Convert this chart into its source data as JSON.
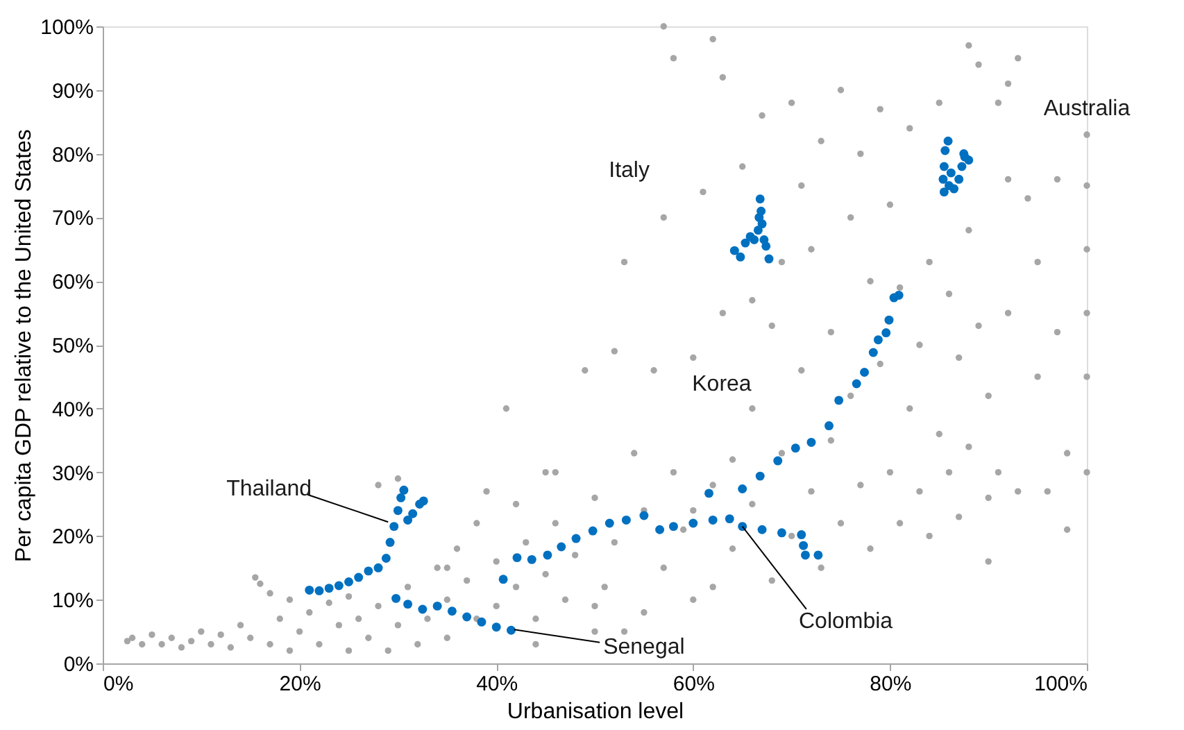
{
  "chart_data": {
    "type": "scatter",
    "xlabel": "Urbanisation level",
    "ylabel": "Per capita GDP relative to the United States",
    "xlim": [
      0,
      100
    ],
    "ylim": [
      0,
      100
    ],
    "xticks": [
      {
        "value": 0,
        "label": "0%"
      },
      {
        "value": 20,
        "label": "20%"
      },
      {
        "value": 40,
        "label": "40%"
      },
      {
        "value": 60,
        "label": "60%"
      },
      {
        "value": 80,
        "label": "80%"
      },
      {
        "value": 100,
        "label": "100%"
      }
    ],
    "yticks": [
      {
        "value": 0,
        "label": "0%"
      },
      {
        "value": 10,
        "label": "10%"
      },
      {
        "value": 20,
        "label": "20%"
      },
      {
        "value": 30,
        "label": "30%"
      },
      {
        "value": 40,
        "label": "40%"
      },
      {
        "value": 50,
        "label": "50%"
      },
      {
        "value": 60,
        "label": "60%"
      },
      {
        "value": 70,
        "label": "70%"
      },
      {
        "value": 80,
        "label": "80%"
      },
      {
        "value": 90,
        "label": "90%"
      },
      {
        "value": 100,
        "label": "100%"
      }
    ],
    "grid": false,
    "marker": "circle",
    "series": [
      {
        "color": "#a6a6a6",
        "x": [
          2.5,
          3,
          4,
          5,
          6,
          7,
          8,
          9,
          10,
          11,
          12,
          13,
          14,
          15,
          15.5,
          16,
          17,
          17,
          18,
          19,
          19,
          20,
          21,
          22,
          23,
          24,
          25,
          25,
          26,
          27,
          28,
          29,
          30,
          31,
          32,
          33,
          34,
          35,
          35,
          36,
          37,
          38,
          38,
          39,
          40,
          40,
          41,
          42,
          42,
          43,
          44,
          45,
          45,
          46,
          47,
          48,
          49,
          50,
          50,
          51,
          52,
          52,
          53,
          54,
          55,
          55,
          56,
          57,
          57,
          58,
          58,
          59,
          60,
          60,
          61,
          62,
          62,
          63,
          63,
          64,
          64,
          65,
          66,
          66,
          67,
          68,
          68,
          69,
          69,
          70,
          70,
          71,
          71,
          72,
          72,
          73,
          73,
          74,
          74,
          75,
          75,
          76,
          76,
          77,
          77,
          78,
          78,
          79,
          79,
          80,
          80,
          81,
          81,
          82,
          82,
          83,
          83,
          84,
          84,
          85,
          85,
          86,
          86,
          87,
          87,
          88,
          88,
          89,
          89,
          90,
          90,
          90,
          91,
          91,
          92,
          92,
          93,
          93,
          94,
          95,
          95,
          96,
          97,
          97,
          98,
          98,
          100,
          100,
          100,
          100,
          100,
          100,
          57,
          62,
          88,
          92,
          66,
          46,
          30,
          28,
          60,
          53,
          44,
          50,
          35
        ],
        "values": [
          3.5,
          4,
          3,
          4.5,
          3,
          4,
          2.5,
          3.5,
          5,
          3,
          4.5,
          2.5,
          6,
          4,
          13.5,
          12.5,
          11,
          3,
          7,
          10,
          2,
          5,
          8,
          3,
          9.5,
          6,
          2,
          10.5,
          7,
          4,
          9,
          2,
          6,
          12,
          3,
          7,
          15,
          10,
          4,
          18,
          13,
          22,
          7,
          27,
          16,
          9,
          40,
          25,
          12,
          19,
          7,
          14,
          30,
          22,
          10,
          17,
          46,
          26,
          5,
          12,
          19,
          49,
          63,
          33,
          8,
          24,
          46,
          15,
          70,
          30,
          95,
          21,
          10,
          48,
          74,
          28,
          12,
          92,
          55,
          18,
          32,
          78,
          40,
          25,
          86,
          13,
          53,
          33,
          63,
          88,
          20,
          75,
          46,
          27,
          65,
          82,
          15,
          52,
          35,
          90,
          22,
          70,
          42,
          80,
          28,
          60,
          18,
          87,
          47,
          30,
          72,
          59,
          22,
          84,
          40,
          50,
          27,
          63,
          20,
          36,
          88,
          58,
          30,
          48,
          23,
          68,
          34,
          53,
          94,
          42,
          26,
          16,
          30,
          88,
          76,
          55,
          27,
          95,
          73,
          45,
          63,
          27,
          52,
          76,
          21,
          33,
          30,
          45,
          55,
          65,
          75,
          83,
          100,
          98,
          97,
          91,
          57,
          30,
          29,
          28,
          24,
          5,
          3,
          9,
          15
        ]
      },
      {
        "color": "#0070c0",
        "x": [
          21,
          22,
          23,
          24,
          25,
          26,
          27,
          28,
          28.8,
          29.2,
          29.6,
          30,
          30.3,
          30.6,
          31,
          31.5,
          32.2,
          32.6,
          29.8,
          31,
          32.5,
          34,
          35.5,
          37,
          38.5,
          40,
          41.5,
          56.6,
          58,
          60,
          62,
          63.7,
          65,
          67,
          69,
          71,
          71.2,
          71.4,
          72.7,
          40.7,
          42.1,
          43.6,
          45.2,
          46.6,
          48.1,
          49.8,
          51.5,
          53.2,
          55,
          61.6,
          65,
          66.8,
          68.6,
          70.4,
          72,
          73.8,
          74.8,
          76.6,
          77.4,
          78.3,
          78.8,
          79.6,
          79.9,
          80.4,
          80.9,
          64.2,
          64.8,
          65.3,
          65.8,
          66.2,
          66.6,
          66.7,
          66.8,
          66.9,
          67,
          67.2,
          67.4,
          67.7,
          85.9,
          85.6,
          85.5,
          85.4,
          85.5,
          86,
          86.5,
          87,
          87.3,
          87.5,
          88,
          87.6,
          86.2
        ],
        "values": [
          11.5,
          11.4,
          11.8,
          12.2,
          12.8,
          13.5,
          14.5,
          15,
          16.5,
          19,
          21.5,
          24,
          26,
          27.2,
          22.5,
          23.5,
          25,
          25.5,
          10.2,
          9.3,
          8.5,
          9,
          8.2,
          7.3,
          6.5,
          5.7,
          5.2,
          21,
          21.5,
          22,
          22.5,
          22.7,
          21.5,
          21,
          20.5,
          20.2,
          18.5,
          17,
          17,
          13.2,
          16.6,
          16.3,
          17,
          18.3,
          19.6,
          20.8,
          22,
          22.5,
          23.2,
          26.7,
          27.4,
          29.4,
          31.8,
          33.8,
          34.7,
          37.3,
          41.3,
          43.9,
          45.7,
          48.8,
          50.8,
          51.9,
          53.9,
          57.4,
          57.8,
          64.8,
          63.8,
          66,
          67,
          66.5,
          68,
          70,
          72.9,
          71,
          69,
          66.5,
          65.5,
          63.5,
          82,
          80.5,
          78,
          76,
          74,
          75,
          74.5,
          76,
          78,
          80,
          79,
          79.5,
          77
        ]
      }
    ],
    "annotations": [
      {
        "text": "Thailand",
        "x": 29,
        "y": 22.2
      },
      {
        "text": "Senegal",
        "x": 41.8,
        "y": 5.3
      },
      {
        "text": "Colombia",
        "x": 65,
        "y": 21.5
      },
      "Korea",
      "Italy",
      "Australia"
    ]
  }
}
